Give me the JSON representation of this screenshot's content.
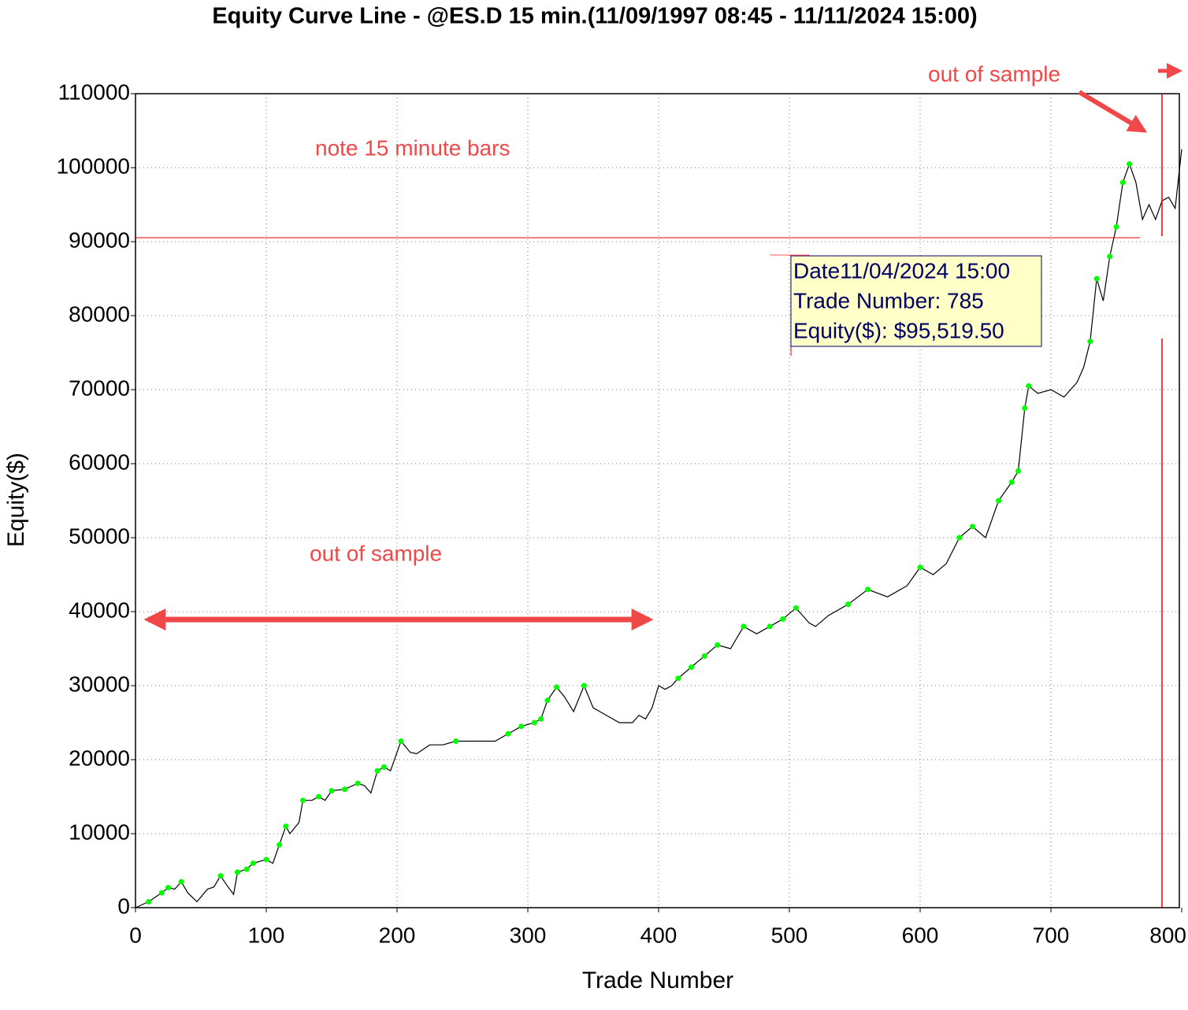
{
  "chart_data": {
    "type": "line",
    "title": "Equity Curve Line - @ES.D 15 min.(11/09/1997 08:45 - 11/11/2024 15:00)",
    "xlabel": "Trade Number",
    "ylabel": "Equity($)",
    "annotations": [
      "note 15 minute bars",
      "out of sample",
      "out of sample"
    ],
    "tooltip": [
      "Date11/04/2024 15:00",
      "Trade Number: 785",
      "Equity($): $95,519.50"
    ],
    "xlim": [
      0,
      800
    ],
    "xticks": [
      0,
      100,
      200,
      300,
      400,
      500,
      600,
      700,
      800
    ],
    "ylim": [
      0,
      110000
    ],
    "yticks": [
      0,
      10000,
      20000,
      30000,
      40000,
      50000,
      60000,
      70000,
      80000,
      90000,
      100000,
      110000
    ],
    "grid": true,
    "series": [
      {
        "name": "Equity",
        "color": "#000000",
        "x": [
          0,
          10,
          20,
          25,
          30,
          35,
          40,
          47,
          55,
          60,
          65,
          70,
          75,
          78,
          85,
          90,
          100,
          105,
          110,
          115,
          118,
          125,
          128,
          135,
          140,
          145,
          150,
          160,
          170,
          175,
          180,
          185,
          190,
          195,
          200,
          203,
          210,
          215,
          225,
          235,
          245,
          255,
          265,
          275,
          285,
          295,
          305,
          310,
          315,
          322,
          328,
          335,
          343,
          350,
          360,
          370,
          380,
          385,
          390,
          395,
          400,
          405,
          410,
          415,
          425,
          435,
          445,
          455,
          465,
          475,
          485,
          495,
          505,
          515,
          520,
          530,
          545,
          560,
          575,
          590,
          600,
          610,
          620,
          630,
          640,
          650,
          660,
          670,
          675,
          680,
          683,
          690,
          700,
          710,
          720,
          725,
          730,
          735,
          740,
          745,
          750,
          755,
          760,
          765,
          770,
          775,
          780,
          785,
          790,
          795,
          800
        ],
        "values": [
          0,
          800,
          2000,
          2700,
          2500,
          3500,
          2000,
          800,
          2500,
          2800,
          4300,
          3000,
          1800,
          4800,
          5200,
          6000,
          6500,
          6000,
          8500,
          11000,
          10000,
          11500,
          14500,
          14500,
          15000,
          14500,
          15800,
          16000,
          16800,
          16500,
          15500,
          18500,
          19000,
          18500,
          21000,
          22500,
          21000,
          20800,
          22000,
          22000,
          22500,
          22500,
          22500,
          22500,
          23500,
          24500,
          25000,
          25500,
          28000,
          29800,
          28500,
          26500,
          30000,
          27000,
          26000,
          25000,
          25000,
          26000,
          25500,
          27000,
          30000,
          29500,
          30000,
          31000,
          32500,
          34000,
          35500,
          35000,
          38000,
          37000,
          38000,
          39000,
          40500,
          38500,
          38000,
          39500,
          41000,
          43000,
          42000,
          43500,
          46000,
          45000,
          46500,
          50000,
          51500,
          50000,
          55000,
          57500,
          59000,
          67500,
          70500,
          69500,
          70000,
          69000,
          71000,
          73000,
          76500,
          85000,
          82000,
          88000,
          92000,
          98000,
          100500,
          98000,
          93000,
          95000,
          93000,
          95520,
          96000,
          94500,
          102500
        ]
      }
    ],
    "markers": {
      "color": "#00ff00",
      "x": [
        10,
        20,
        25,
        35,
        65,
        78,
        85,
        90,
        100,
        110,
        115,
        128,
        140,
        150,
        160,
        170,
        185,
        190,
        203,
        245,
        285,
        295,
        305,
        310,
        315,
        322,
        343,
        415,
        425,
        435,
        445,
        465,
        485,
        495,
        505,
        545,
        560,
        600,
        630,
        640,
        660,
        670,
        675,
        680,
        683,
        730,
        735,
        745,
        750,
        755,
        760
      ],
      "values": [
        800,
        2000,
        2700,
        3500,
        4300,
        4800,
        5200,
        6000,
        6500,
        8500,
        11000,
        14500,
        15000,
        15800,
        16000,
        16800,
        18500,
        19000,
        22500,
        22500,
        23500,
        24500,
        25000,
        25500,
        28000,
        29800,
        30000,
        31000,
        32500,
        34000,
        35500,
        38000,
        38000,
        39000,
        40500,
        41000,
        43000,
        46000,
        50000,
        51500,
        55000,
        57500,
        59000,
        67500,
        70500,
        76500,
        85000,
        88000,
        92000,
        98000,
        100500
      ]
    }
  }
}
